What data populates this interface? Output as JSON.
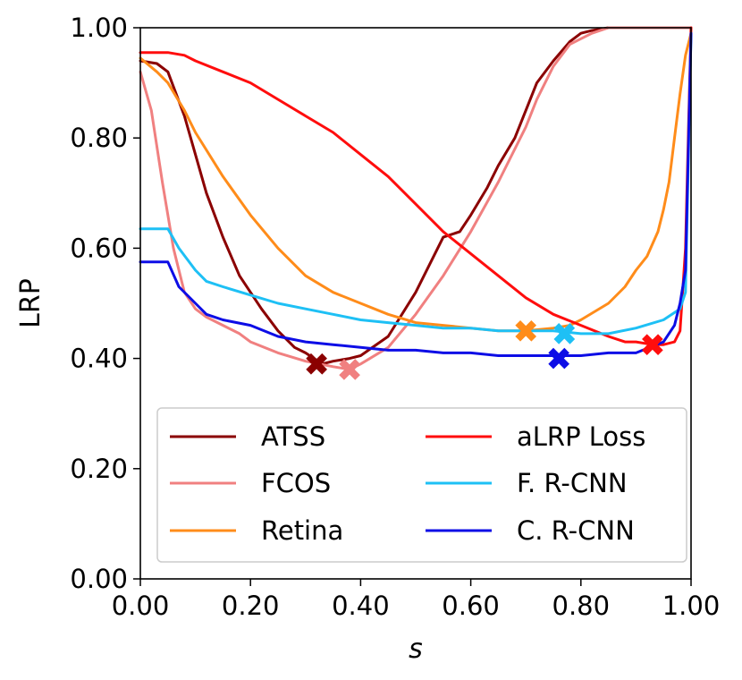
{
  "chart_data": {
    "type": "line",
    "title": "",
    "xlabel": "s",
    "ylabel": "LRP",
    "xlim": [
      0,
      1
    ],
    "ylim": [
      0,
      1
    ],
    "xticks": [
      0.0,
      0.2,
      0.4,
      0.6,
      0.8,
      1.0
    ],
    "yticks": [
      0.0,
      0.2,
      0.4,
      0.6,
      0.8,
      1.0
    ],
    "xtick_labels": [
      "0.00",
      "0.20",
      "0.40",
      "0.60",
      "0.80",
      "1.00"
    ],
    "ytick_labels": [
      "0.00",
      "0.20",
      "0.40",
      "0.60",
      "0.80",
      "1.00"
    ],
    "grid": false,
    "legend_position": "lower-center",
    "series": [
      {
        "name": "ATSS",
        "color": "#8b0000",
        "x": [
          0.0,
          0.03,
          0.05,
          0.08,
          0.1,
          0.12,
          0.15,
          0.18,
          0.2,
          0.22,
          0.25,
          0.28,
          0.3,
          0.33,
          0.35,
          0.38,
          0.4,
          0.45,
          0.5,
          0.55,
          0.58,
          0.6,
          0.63,
          0.65,
          0.68,
          0.7,
          0.72,
          0.75,
          0.78,
          0.8,
          0.82,
          0.85,
          0.9,
          1.0
        ],
        "y": [
          0.94,
          0.935,
          0.92,
          0.84,
          0.77,
          0.7,
          0.62,
          0.55,
          0.52,
          0.49,
          0.45,
          0.42,
          0.41,
          0.39,
          0.395,
          0.4,
          0.405,
          0.44,
          0.52,
          0.62,
          0.63,
          0.66,
          0.71,
          0.75,
          0.8,
          0.85,
          0.9,
          0.94,
          0.975,
          0.99,
          0.995,
          1.0,
          1.0,
          1.0
        ],
        "marker": {
          "x": 0.32,
          "y": 0.39
        }
      },
      {
        "name": "FCOS",
        "color": "#f08080",
        "x": [
          0.0,
          0.02,
          0.04,
          0.06,
          0.08,
          0.1,
          0.12,
          0.15,
          0.18,
          0.2,
          0.25,
          0.3,
          0.35,
          0.38,
          0.4,
          0.45,
          0.5,
          0.55,
          0.6,
          0.65,
          0.7,
          0.72,
          0.75,
          0.78,
          0.8,
          0.82,
          0.85,
          0.9,
          1.0
        ],
        "y": [
          0.92,
          0.85,
          0.72,
          0.6,
          0.52,
          0.49,
          0.475,
          0.46,
          0.445,
          0.43,
          0.41,
          0.395,
          0.385,
          0.38,
          0.39,
          0.42,
          0.48,
          0.55,
          0.63,
          0.72,
          0.82,
          0.87,
          0.93,
          0.97,
          0.98,
          0.99,
          1.0,
          1.0,
          1.0
        ],
        "marker": {
          "x": 0.38,
          "y": 0.38
        }
      },
      {
        "name": "Retina",
        "color": "#ff8c1a",
        "x": [
          0.0,
          0.03,
          0.05,
          0.08,
          0.1,
          0.15,
          0.2,
          0.25,
          0.3,
          0.35,
          0.4,
          0.45,
          0.5,
          0.55,
          0.6,
          0.65,
          0.7,
          0.75,
          0.78,
          0.8,
          0.85,
          0.88,
          0.9,
          0.92,
          0.94,
          0.95,
          0.96,
          0.97,
          0.98,
          0.99,
          1.0
        ],
        "y": [
          0.945,
          0.92,
          0.9,
          0.85,
          0.81,
          0.73,
          0.66,
          0.6,
          0.55,
          0.52,
          0.5,
          0.48,
          0.465,
          0.46,
          0.455,
          0.45,
          0.45,
          0.455,
          0.46,
          0.47,
          0.5,
          0.53,
          0.56,
          0.585,
          0.63,
          0.67,
          0.72,
          0.8,
          0.88,
          0.95,
          0.99
        ],
        "marker": {
          "x": 0.7,
          "y": 0.45
        }
      },
      {
        "name": "aLRP Loss",
        "color": "#ff0d0d",
        "x": [
          0.0,
          0.02,
          0.05,
          0.08,
          0.1,
          0.15,
          0.2,
          0.25,
          0.3,
          0.35,
          0.4,
          0.45,
          0.5,
          0.55,
          0.6,
          0.65,
          0.7,
          0.75,
          0.8,
          0.85,
          0.88,
          0.9,
          0.93,
          0.95,
          0.97,
          0.98,
          0.99,
          1.0
        ],
        "y": [
          0.955,
          0.955,
          0.955,
          0.95,
          0.94,
          0.92,
          0.9,
          0.87,
          0.84,
          0.81,
          0.77,
          0.73,
          0.68,
          0.63,
          0.59,
          0.55,
          0.51,
          0.48,
          0.46,
          0.44,
          0.43,
          0.43,
          0.425,
          0.425,
          0.43,
          0.45,
          0.6,
          1.0
        ],
        "marker": {
          "x": 0.93,
          "y": 0.425
        }
      },
      {
        "name": "F. R-CNN",
        "color": "#1ec0f5",
        "x": [
          0.0,
          0.03,
          0.05,
          0.07,
          0.1,
          0.12,
          0.15,
          0.2,
          0.25,
          0.3,
          0.35,
          0.4,
          0.45,
          0.5,
          0.55,
          0.6,
          0.65,
          0.7,
          0.75,
          0.8,
          0.85,
          0.9,
          0.95,
          0.98,
          0.99,
          1.0
        ],
        "y": [
          0.635,
          0.635,
          0.635,
          0.6,
          0.56,
          0.54,
          0.53,
          0.515,
          0.5,
          0.49,
          0.48,
          0.47,
          0.465,
          0.46,
          0.455,
          0.455,
          0.45,
          0.45,
          0.45,
          0.445,
          0.445,
          0.455,
          0.47,
          0.49,
          0.52,
          0.99
        ],
        "marker": {
          "x": 0.77,
          "y": 0.445
        }
      },
      {
        "name": "C. R-CNN",
        "color": "#0d0de6",
        "x": [
          0.0,
          0.03,
          0.05,
          0.07,
          0.1,
          0.12,
          0.15,
          0.2,
          0.25,
          0.3,
          0.35,
          0.4,
          0.45,
          0.5,
          0.55,
          0.6,
          0.65,
          0.7,
          0.75,
          0.8,
          0.85,
          0.9,
          0.95,
          0.97,
          0.98,
          0.99,
          1.0
        ],
        "y": [
          0.575,
          0.575,
          0.575,
          0.53,
          0.5,
          0.48,
          0.47,
          0.46,
          0.44,
          0.43,
          0.425,
          0.42,
          0.415,
          0.415,
          0.41,
          0.41,
          0.405,
          0.405,
          0.405,
          0.405,
          0.41,
          0.41,
          0.43,
          0.46,
          0.5,
          0.56,
          0.99
        ],
        "marker": {
          "x": 0.76,
          "y": 0.4
        }
      }
    ]
  }
}
